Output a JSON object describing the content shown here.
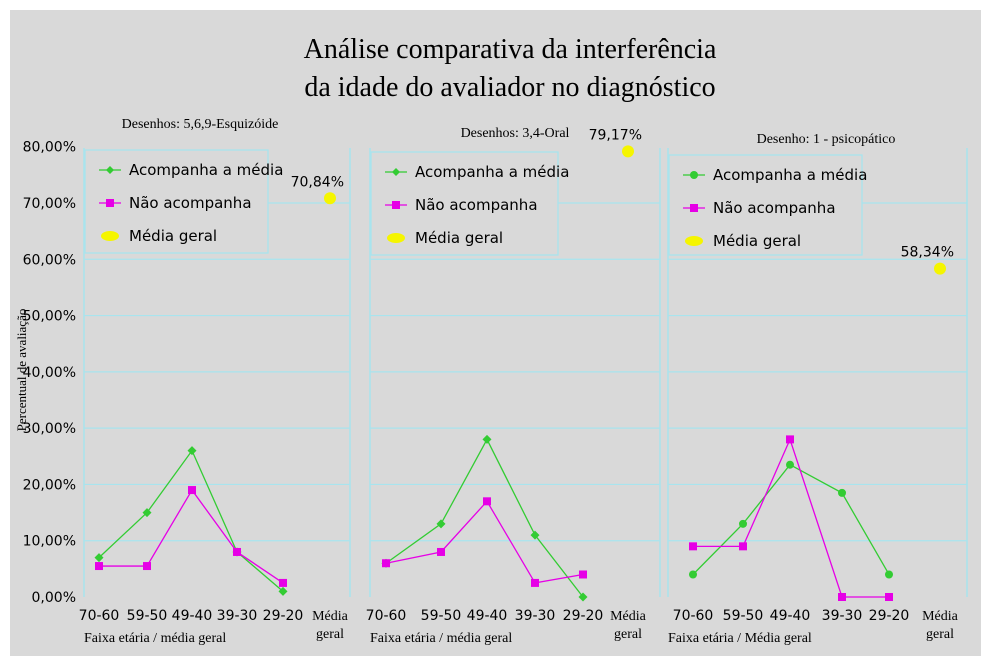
{
  "chart": {
    "title_line1": "Análise comparativa da interferência",
    "title_line2": "da idade do avaliador no diagnóstico",
    "ylabel": "Percentual de avaliação"
  },
  "colors": {
    "green": "#33cc33",
    "magenta": "#e600e6",
    "yellow": "#f5f500",
    "grid": "#a8e4ee"
  },
  "chart_data": [
    {
      "type": "line",
      "panel_title": "Desenhos: 5,6,9-Esquizóide",
      "categories": [
        "70-60",
        "59-50",
        "49-40",
        "39-30",
        "29-20",
        "Média geral"
      ],
      "xlabel": "Faixa etária / média geral",
      "ylabel": "Percentual de avaliação",
      "ylim": [
        0,
        80
      ],
      "yticks": [
        "0,00%",
        "10,00%",
        "20,00%",
        "30,00%",
        "40,00%",
        "50,00%",
        "60,00%",
        "70,00%",
        "80,00%"
      ],
      "legend": [
        "Acompanha a média",
        "Não acompanha",
        "Média geral"
      ],
      "series": [
        {
          "name": "Acompanha a média",
          "values": [
            7,
            15,
            26,
            8,
            1,
            null
          ]
        },
        {
          "name": "Não acompanha",
          "values": [
            5.5,
            5.5,
            19,
            8,
            2.5,
            null
          ]
        },
        {
          "name": "Média geral",
          "values": [
            null,
            null,
            null,
            null,
            null,
            70.84
          ]
        }
      ],
      "data_label": "70,84%"
    },
    {
      "type": "line",
      "panel_title": "Desenhos: 3,4-Oral",
      "categories": [
        "70-60",
        "59-50",
        "49-40",
        "39-30",
        "29-20",
        "Média geral"
      ],
      "xlabel": "Faixa etária / média geral",
      "ylim": [
        0,
        80
      ],
      "legend": [
        "Acompanha a média",
        "Não acompanha",
        "Média geral"
      ],
      "series": [
        {
          "name": "Acompanha a média",
          "values": [
            6,
            13,
            28,
            11,
            0,
            null
          ]
        },
        {
          "name": "Não acompanha",
          "values": [
            6,
            8,
            17,
            2.5,
            4,
            null
          ]
        },
        {
          "name": "Média geral",
          "values": [
            null,
            null,
            null,
            null,
            null,
            79.17
          ]
        }
      ],
      "data_label": "79,17%"
    },
    {
      "type": "line",
      "panel_title": "Desenho: 1 - psicopático",
      "categories": [
        "70-60",
        "59-50",
        "49-40",
        "39-30",
        "29-20",
        "Média geral"
      ],
      "xlabel": "Faixa etária / Média geral",
      "ylim": [
        0,
        80
      ],
      "legend": [
        "Acompanha a média",
        "Não acompanha",
        "Média geral"
      ],
      "series": [
        {
          "name": "Acompanha a média",
          "values": [
            4,
            13,
            23.5,
            18.5,
            4,
            null
          ]
        },
        {
          "name": "Não acompanha",
          "values": [
            9,
            9,
            28,
            0,
            0,
            null
          ]
        },
        {
          "name": "Média geral",
          "values": [
            null,
            null,
            null,
            null,
            null,
            58.34
          ]
        }
      ],
      "data_label": "58,34%"
    }
  ]
}
